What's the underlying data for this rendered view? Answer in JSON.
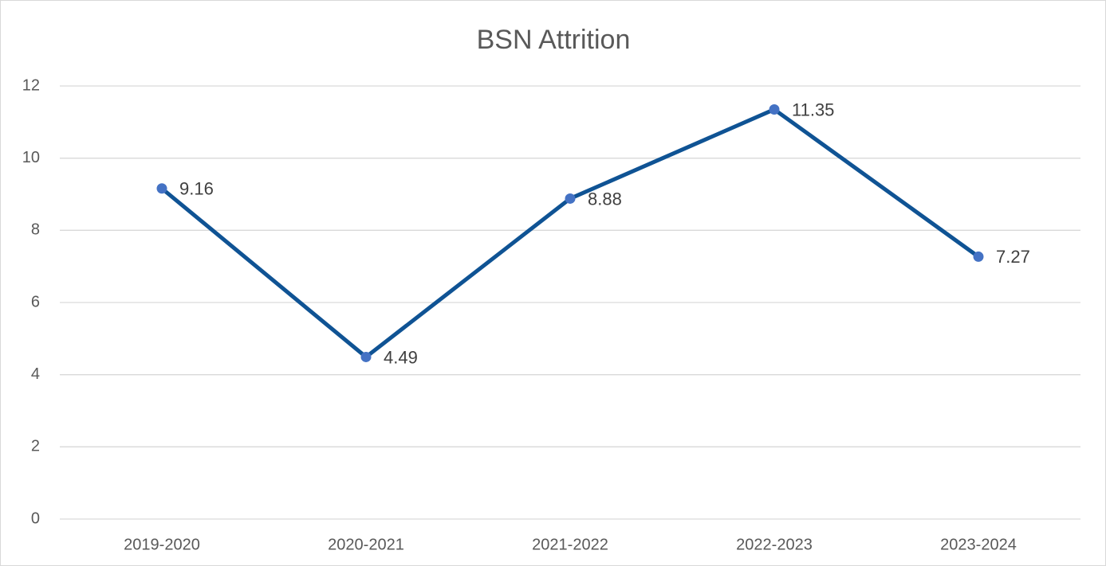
{
  "chart_data": {
    "type": "line",
    "title": "BSN Attrition",
    "categories": [
      "2019-2020",
      "2020-2021",
      "2021-2022",
      "2022-2023",
      "2023-2024"
    ],
    "values": [
      9.16,
      4.49,
      8.88,
      11.35,
      7.27
    ],
    "color": "#0f5394",
    "marker_color": "#4472c4",
    "ylim": [
      0,
      12
    ],
    "yticks": [
      0,
      2,
      4,
      6,
      8,
      10,
      12
    ],
    "grid": true
  }
}
